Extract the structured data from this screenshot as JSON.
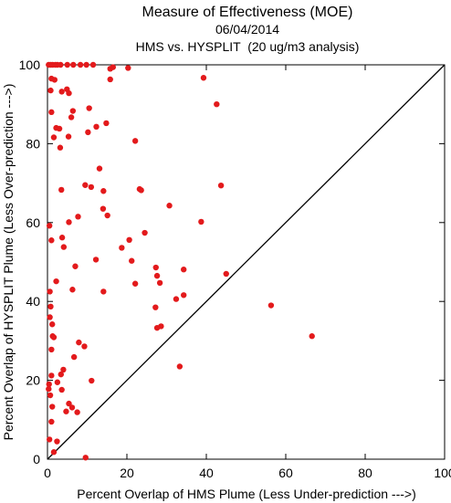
{
  "chart_data": {
    "type": "scatter",
    "title": "Measure of Effectiveness (MOE)",
    "subtitle_date": "06/04/2014",
    "subtitle": "HMS vs. HYSPLIT  (20 ug/m3 analysis)",
    "xlabel": "Percent Overlap of HMS Plume (Less Under-prediction --->)",
    "ylabel": "Percent Overlap of HYSPLIT Plume (Less Over-prediction --->)",
    "xlim": [
      0,
      100
    ],
    "ylim": [
      0,
      100
    ],
    "x_ticks": [
      0,
      20,
      40,
      60,
      80,
      100
    ],
    "y_ticks": [
      0,
      20,
      40,
      60,
      80,
      100
    ],
    "reference_line": "y = x",
    "point_color": "#e31a1c",
    "points": [
      {
        "x": 0.3,
        "y": 100
      },
      {
        "x": 0.8,
        "y": 100
      },
      {
        "x": 1.3,
        "y": 100
      },
      {
        "x": 2.0,
        "y": 100
      },
      {
        "x": 2.5,
        "y": 100
      },
      {
        "x": 3.3,
        "y": 100
      },
      {
        "x": 5.0,
        "y": 100
      },
      {
        "x": 6.5,
        "y": 100
      },
      {
        "x": 8.3,
        "y": 100
      },
      {
        "x": 9.8,
        "y": 100
      },
      {
        "x": 11.5,
        "y": 100
      },
      {
        "x": 15.8,
        "y": 99
      },
      {
        "x": 20.3,
        "y": 99.2
      },
      {
        "x": 16.5,
        "y": 99.4
      },
      {
        "x": 1.0,
        "y": 96.5
      },
      {
        "x": 1.8,
        "y": 96.2
      },
      {
        "x": 15.8,
        "y": 96.3
      },
      {
        "x": 39.3,
        "y": 96.7
      },
      {
        "x": 0.8,
        "y": 93.5
      },
      {
        "x": 3.6,
        "y": 93.2
      },
      {
        "x": 4.9,
        "y": 93.8
      },
      {
        "x": 5.4,
        "y": 92.8
      },
      {
        "x": 1.0,
        "y": 88.0
      },
      {
        "x": 6.4,
        "y": 88.3
      },
      {
        "x": 10.5,
        "y": 89.0
      },
      {
        "x": 42.6,
        "y": 90.0
      },
      {
        "x": 6.0,
        "y": 86.7
      },
      {
        "x": 14.8,
        "y": 85.2
      },
      {
        "x": 12.3,
        "y": 84.3
      },
      {
        "x": 2.2,
        "y": 84.0
      },
      {
        "x": 3.0,
        "y": 83.8
      },
      {
        "x": 10.2,
        "y": 82.9
      },
      {
        "x": 1.6,
        "y": 81.6
      },
      {
        "x": 5.3,
        "y": 81.8
      },
      {
        "x": 22.1,
        "y": 80.7
      },
      {
        "x": 3.2,
        "y": 79.0
      },
      {
        "x": 13.1,
        "y": 73.7
      },
      {
        "x": 9.5,
        "y": 69.5
      },
      {
        "x": 11.0,
        "y": 69.0
      },
      {
        "x": 23.2,
        "y": 68.5
      },
      {
        "x": 23.6,
        "y": 68.2
      },
      {
        "x": 43.7,
        "y": 69.4
      },
      {
        "x": 3.5,
        "y": 68.3
      },
      {
        "x": 14.1,
        "y": 68.0
      },
      {
        "x": 14.0,
        "y": 63.5
      },
      {
        "x": 30.7,
        "y": 64.3
      },
      {
        "x": 15.1,
        "y": 61.8
      },
      {
        "x": 7.7,
        "y": 61.5
      },
      {
        "x": 5.4,
        "y": 60.1
      },
      {
        "x": 38.7,
        "y": 60.2
      },
      {
        "x": 0.5,
        "y": 59.2
      },
      {
        "x": 24.5,
        "y": 57.4
      },
      {
        "x": 3.7,
        "y": 56.2
      },
      {
        "x": 20.6,
        "y": 55.6
      },
      {
        "x": 1.0,
        "y": 55.5
      },
      {
        "x": 4.1,
        "y": 53.8
      },
      {
        "x": 18.7,
        "y": 53.6
      },
      {
        "x": 12.2,
        "y": 50.6
      },
      {
        "x": 21.2,
        "y": 50.3
      },
      {
        "x": 7.0,
        "y": 48.9
      },
      {
        "x": 27.3,
        "y": 48.6
      },
      {
        "x": 34.3,
        "y": 48.1
      },
      {
        "x": 27.6,
        "y": 46.5
      },
      {
        "x": 45.0,
        "y": 47.0
      },
      {
        "x": 2.2,
        "y": 45.1
      },
      {
        "x": 22.1,
        "y": 44.5
      },
      {
        "x": 28.3,
        "y": 44.7
      },
      {
        "x": 0.6,
        "y": 42.5
      },
      {
        "x": 6.3,
        "y": 43.0
      },
      {
        "x": 14.1,
        "y": 42.5
      },
      {
        "x": 34.3,
        "y": 41.6
      },
      {
        "x": 32.4,
        "y": 40.6
      },
      {
        "x": 0.8,
        "y": 38.7
      },
      {
        "x": 27.2,
        "y": 38.5
      },
      {
        "x": 56.3,
        "y": 39.0
      },
      {
        "x": 0.6,
        "y": 36.0
      },
      {
        "x": 1.2,
        "y": 34.2
      },
      {
        "x": 28.6,
        "y": 33.7
      },
      {
        "x": 27.6,
        "y": 33.3
      },
      {
        "x": 1.3,
        "y": 31.2
      },
      {
        "x": 1.6,
        "y": 30.9
      },
      {
        "x": 66.6,
        "y": 31.2
      },
      {
        "x": 7.9,
        "y": 29.6
      },
      {
        "x": 9.3,
        "y": 28.6
      },
      {
        "x": 1.0,
        "y": 27.8
      },
      {
        "x": 6.7,
        "y": 25.9
      },
      {
        "x": 33.3,
        "y": 23.5
      },
      {
        "x": 4.0,
        "y": 22.7
      },
      {
        "x": 3.4,
        "y": 21.5
      },
      {
        "x": 1.0,
        "y": 21.2
      },
      {
        "x": 11.1,
        "y": 19.9
      },
      {
        "x": 0.4,
        "y": 19.0
      },
      {
        "x": 2.5,
        "y": 19.5
      },
      {
        "x": 3.6,
        "y": 17.6
      },
      {
        "x": 0.3,
        "y": 17.8
      },
      {
        "x": 0.7,
        "y": 16.2
      },
      {
        "x": 5.4,
        "y": 14.1
      },
      {
        "x": 1.2,
        "y": 13.3
      },
      {
        "x": 6.2,
        "y": 13.1
      },
      {
        "x": 4.7,
        "y": 12.1
      },
      {
        "x": 7.5,
        "y": 11.9
      },
      {
        "x": 1.0,
        "y": 9.5
      },
      {
        "x": 0.5,
        "y": 5.0
      },
      {
        "x": 2.4,
        "y": 4.5
      },
      {
        "x": 1.6,
        "y": 1.8
      },
      {
        "x": 9.6,
        "y": 0.4
      }
    ]
  }
}
